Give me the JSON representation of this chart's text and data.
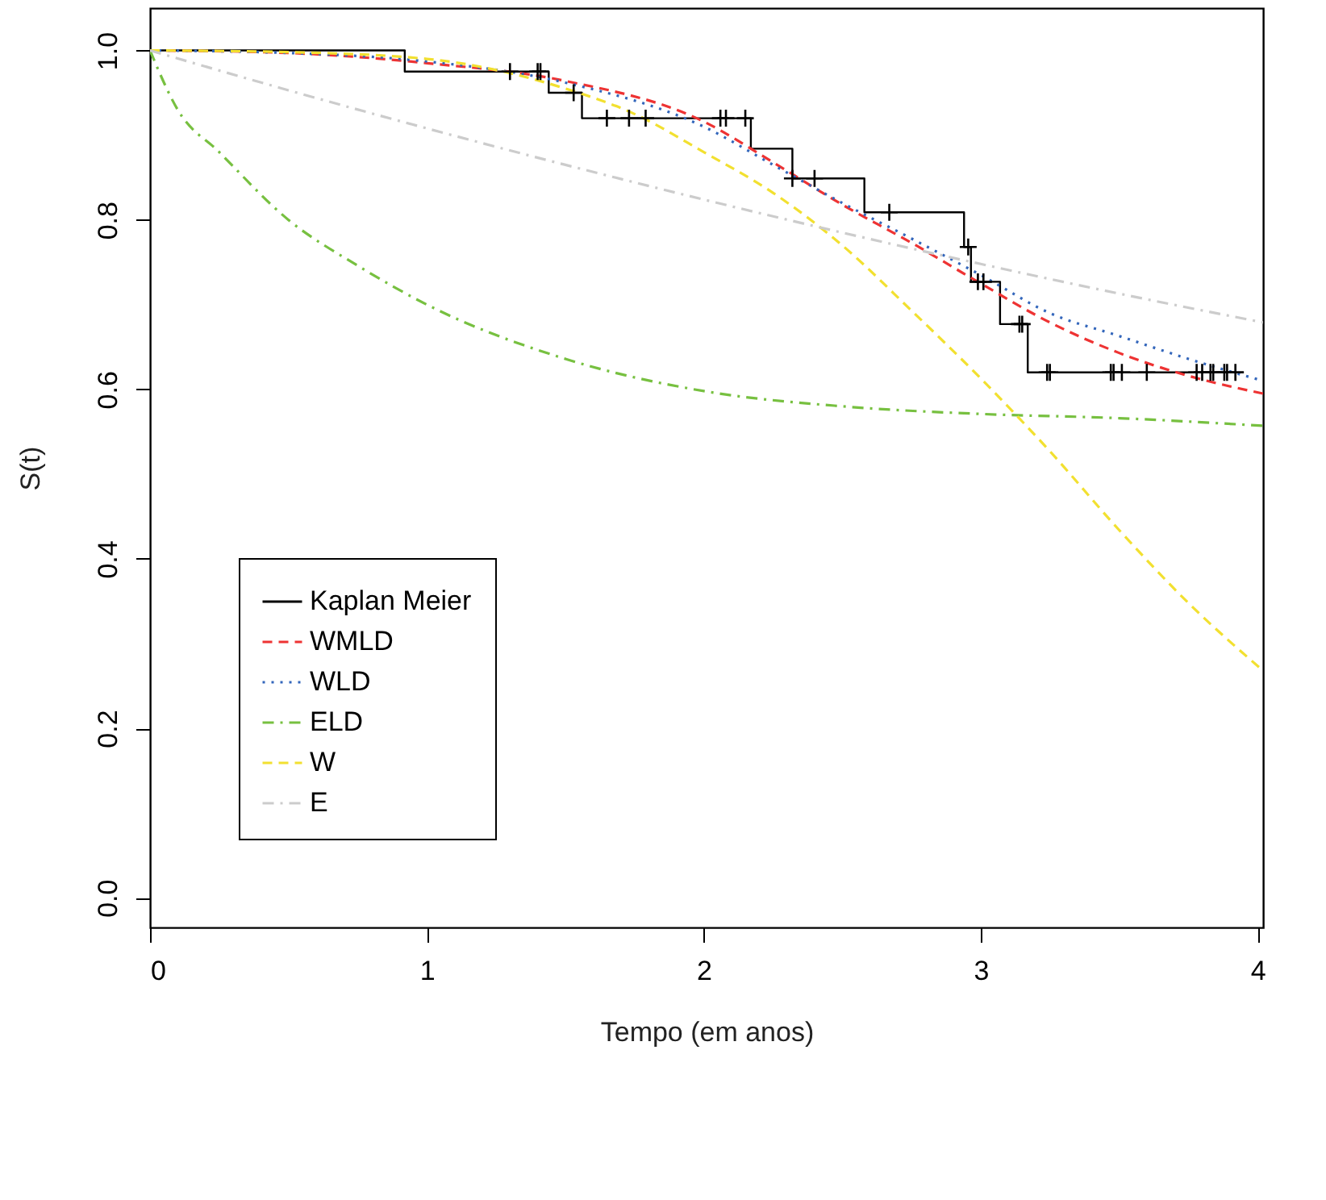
{
  "chart_data": {
    "type": "line",
    "xlabel": "Tempo (em anos)",
    "ylabel": "S(t)",
    "xlim": [
      0,
      4.02
    ],
    "xticks": [
      0,
      1,
      2,
      3,
      4
    ],
    "ylim": [
      -0.035,
      1.05
    ],
    "yticks": [
      {
        "value": 0,
        "label": "0.0"
      },
      {
        "value": 0.2,
        "label": "0.2"
      },
      {
        "value": 0.4,
        "label": "0.4"
      },
      {
        "value": 0.6,
        "label": "0.6"
      },
      {
        "value": 0.8,
        "label": "0.8"
      },
      {
        "value": 1,
        "label": "1.0"
      }
    ],
    "grid": false,
    "legend": "bottom left",
    "series": [
      {
        "name": "Kaplan Meier",
        "type": "step",
        "color": "#000000",
        "line_style": "solid",
        "x": [
          0,
          0.92,
          1.44,
          1.56,
          2.17,
          2.32,
          2.58,
          2.94,
          2.965,
          3.07,
          3.17,
          3.95
        ],
        "values": [
          1.0,
          0.975,
          0.95,
          0.92,
          0.884,
          0.849,
          0.809,
          0.768,
          0.727,
          0.677,
          0.62,
          0.62
        ]
      },
      {
        "name": "WMLD",
        "type": "line",
        "color": "#ee3333",
        "line_style": "dashed",
        "x": [
          0,
          0.5,
          1,
          1.5,
          2,
          2.25,
          2.5,
          2.75,
          3,
          3.25,
          3.5,
          3.75,
          4.02
        ],
        "values": [
          1.0,
          0.997,
          0.985,
          0.964,
          0.916,
          0.868,
          0.818,
          0.773,
          0.725,
          0.679,
          0.643,
          0.616,
          0.595
        ]
      },
      {
        "name": "WLD",
        "type": "line",
        "color": "#3366bb",
        "line_style": "dotted",
        "x": [
          0,
          0.5,
          1,
          1.5,
          2,
          2.25,
          2.5,
          2.75,
          3,
          3.25,
          3.5,
          3.75,
          4.02
        ],
        "values": [
          1.0,
          0.997,
          0.987,
          0.962,
          0.91,
          0.865,
          0.82,
          0.778,
          0.735,
          0.69,
          0.663,
          0.636,
          0.61
        ]
      },
      {
        "name": "ELD",
        "type": "line",
        "color": "#77c040",
        "line_style": "dashdot",
        "x": [
          0,
          0.1,
          0.25,
          0.5,
          0.75,
          1,
          1.5,
          2,
          2.5,
          3,
          3.5,
          4.02
        ],
        "values": [
          1.0,
          0.93,
          0.88,
          0.8,
          0.746,
          0.7,
          0.636,
          0.598,
          0.58,
          0.571,
          0.566,
          0.557
        ]
      },
      {
        "name": "W",
        "type": "line",
        "color": "#f2e030",
        "line_style": "dashed",
        "x": [
          0,
          0.5,
          1,
          1.5,
          1.75,
          2,
          2.25,
          2.5,
          2.75,
          3,
          3.25,
          3.5,
          3.75,
          4.02
        ],
        "values": [
          1.0,
          0.998,
          0.99,
          0.955,
          0.925,
          0.88,
          0.832,
          0.77,
          0.693,
          0.613,
          0.527,
          0.434,
          0.348,
          0.268
        ]
      },
      {
        "name": "E",
        "type": "line",
        "color": "#cccccc",
        "line_style": "dashdot",
        "x": [
          0,
          0.5,
          1,
          1.5,
          2,
          2.5,
          3,
          3.5,
          4.02
        ],
        "values": [
          1.0,
          0.953,
          0.908,
          0.865,
          0.824,
          0.785,
          0.748,
          0.713,
          0.679
        ]
      },
      {
        "type": "scatter",
        "color": "#000000",
        "marker": "cross",
        "x": [
          1.3,
          1.4,
          1.41,
          1.53,
          1.65,
          1.73,
          1.79,
          2.06,
          2.08,
          2.15,
          2.32,
          2.4,
          2.67,
          2.955,
          2.99,
          3.01,
          3.14,
          3.15,
          3.24,
          3.25,
          3.47,
          3.48,
          3.51,
          3.6,
          3.78,
          3.8,
          3.83,
          3.84,
          3.88,
          3.89,
          3.92
        ],
        "values": [
          0.975,
          0.975,
          0.975,
          0.95,
          0.92,
          0.92,
          0.92,
          0.92,
          0.92,
          0.92,
          0.849,
          0.849,
          0.809,
          0.768,
          0.727,
          0.727,
          0.677,
          0.677,
          0.62,
          0.62,
          0.62,
          0.62,
          0.62,
          0.62,
          0.62,
          0.62,
          0.62,
          0.62,
          0.62,
          0.62,
          0.62
        ]
      }
    ]
  }
}
